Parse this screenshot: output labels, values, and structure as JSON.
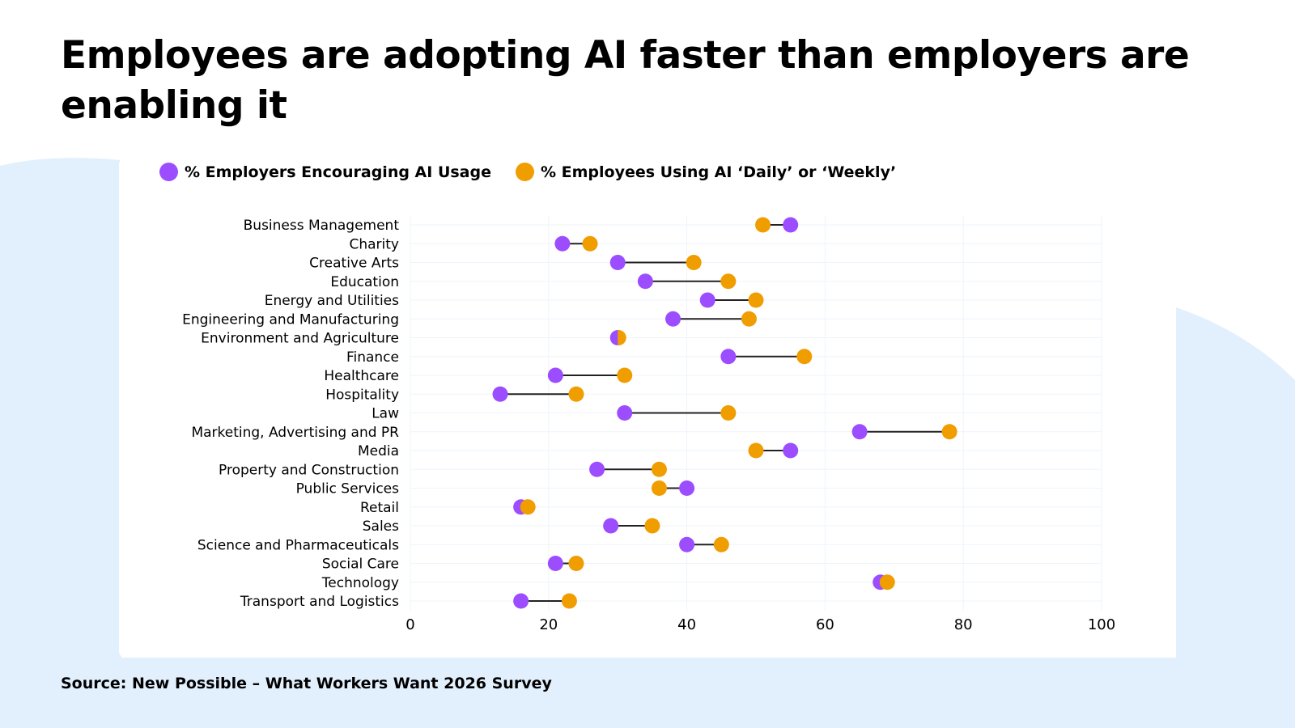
{
  "title": "Employees are adopting AI faster than employers are enabling it",
  "source": "Source: New Possible – What Workers Want 2026 Survey",
  "colors": {
    "employers": "#9b4dff",
    "employees": "#f09d00",
    "background": "#e2effd"
  },
  "chart_data": {
    "type": "dumbbell",
    "legend_placement": "top-left",
    "grid": true,
    "xlim": [
      0,
      100
    ],
    "xticks": [
      0,
      20,
      40,
      60,
      80,
      100
    ],
    "categories": [
      "Business Management",
      "Charity",
      "Creative Arts",
      "Education",
      "Energy and Utilities",
      "Engineering and Manufacturing",
      "Environment and Agriculture",
      "Finance",
      "Healthcare",
      "Hospitality",
      "Law",
      "Marketing, Advertising and PR",
      "Media",
      "Property and Construction",
      "Public Services",
      "Retail",
      "Sales",
      "Science and Pharmaceuticals",
      "Social Care",
      "Technology",
      "Transport and Logistics"
    ],
    "series": [
      {
        "name": "% Employers Encouraging AI Usage",
        "color": "#9b4dff",
        "values": [
          55,
          22,
          30,
          34,
          43,
          38,
          30,
          46,
          21,
          13,
          31,
          65,
          55,
          27,
          40,
          16,
          29,
          40,
          21,
          68,
          16
        ]
      },
      {
        "name": "% Employees Using AI ‘Daily’ or ‘Weekly’",
        "color": "#f09d00",
        "values": [
          51,
          26,
          41,
          46,
          50,
          49,
          30,
          57,
          31,
          24,
          46,
          78,
          50,
          36,
          36,
          17,
          35,
          45,
          24,
          69,
          23
        ]
      }
    ]
  }
}
